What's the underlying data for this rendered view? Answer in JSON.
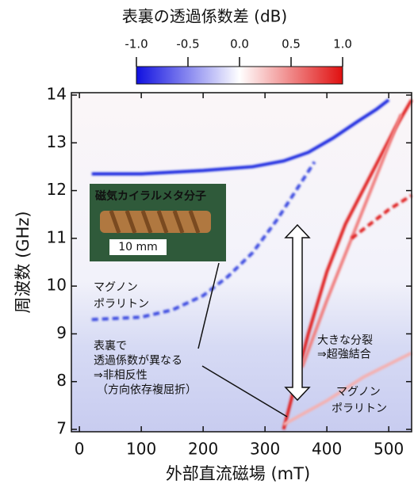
{
  "chart_data": {
    "type": "heatmap",
    "title": "表裏の透過係数差 (dB)",
    "x_label": "外部直流磁場 (mT)",
    "y_label": "周波数 (GHz)",
    "xlim": [
      -13,
      537
    ],
    "ylim": [
      6.95,
      14.05
    ],
    "xticks": [
      0,
      100,
      200,
      300,
      400,
      500
    ],
    "yticks": [
      7,
      8,
      9,
      10,
      11,
      12,
      13,
      14
    ],
    "colorbar": {
      "lim": [
        -1,
        1
      ],
      "ticks": [
        {
          "value": -1,
          "label": "-1.0"
        },
        -0.5,
        {
          "value": 0,
          "label": "0.0"
        },
        0.5,
        {
          "value": 1,
          "label": "1.0"
        }
      ],
      "colors": [
        "#1010e0",
        "#ffffff",
        "#e01010"
      ]
    },
    "series": [
      {
        "color": "#1a2ae0",
        "style": "solid",
        "x": [
          20,
          100,
          200,
          280,
          330,
          370,
          410,
          450,
          480,
          500
        ],
        "values": [
          12.35,
          12.35,
          12.42,
          12.5,
          12.62,
          12.8,
          13.1,
          13.45,
          13.7,
          13.9
        ]
      },
      {
        "color": "#3a4ae0",
        "style": "dashed",
        "x": [
          20,
          100,
          150,
          200,
          240,
          280,
          320,
          350,
          380
        ],
        "values": [
          9.3,
          9.35,
          9.5,
          9.8,
          10.2,
          10.7,
          11.4,
          12.0,
          12.6
        ]
      },
      {
        "color": "#e02020",
        "style": "solid",
        "x": [
          330,
          350,
          370,
          400,
          430,
          470,
          510,
          537
        ],
        "values": [
          7.0,
          8.0,
          9.0,
          10.3,
          11.3,
          12.3,
          13.3,
          13.9
        ]
      },
      {
        "color": "#f08080",
        "style": "solid",
        "x": [
          360,
          400,
          440,
          480,
          520
        ],
        "values": [
          8.3,
          9.7,
          11.0,
          12.3,
          13.6
        ]
      },
      {
        "color": "#e02020",
        "style": "dashed",
        "x": [
          440,
          470,
          500,
          537
        ],
        "values": [
          11.0,
          11.3,
          11.6,
          11.9
        ]
      },
      {
        "color": "#f4b0b0",
        "style": "solid",
        "x": [
          330,
          400,
          460,
          537
        ],
        "values": [
          7.1,
          7.6,
          8.1,
          8.6
        ]
      }
    ],
    "annotations": [
      {
        "lines": [
          "磁気カイラルメタ分子"
        ]
      },
      {
        "lines": [
          "10 mm"
        ]
      },
      {
        "lines": [
          "マグノン",
          "ポラリトン"
        ]
      },
      {
        "lines": [
          "表裏で",
          "透過係数が異なる",
          "⇒非相反性",
          "（方向依存複屈折）"
        ]
      },
      {
        "lines": [
          "大きな分裂",
          "⇒超強結合"
        ]
      },
      {
        "lines": [
          "マグノン",
          "ポラリトン"
        ]
      }
    ]
  }
}
